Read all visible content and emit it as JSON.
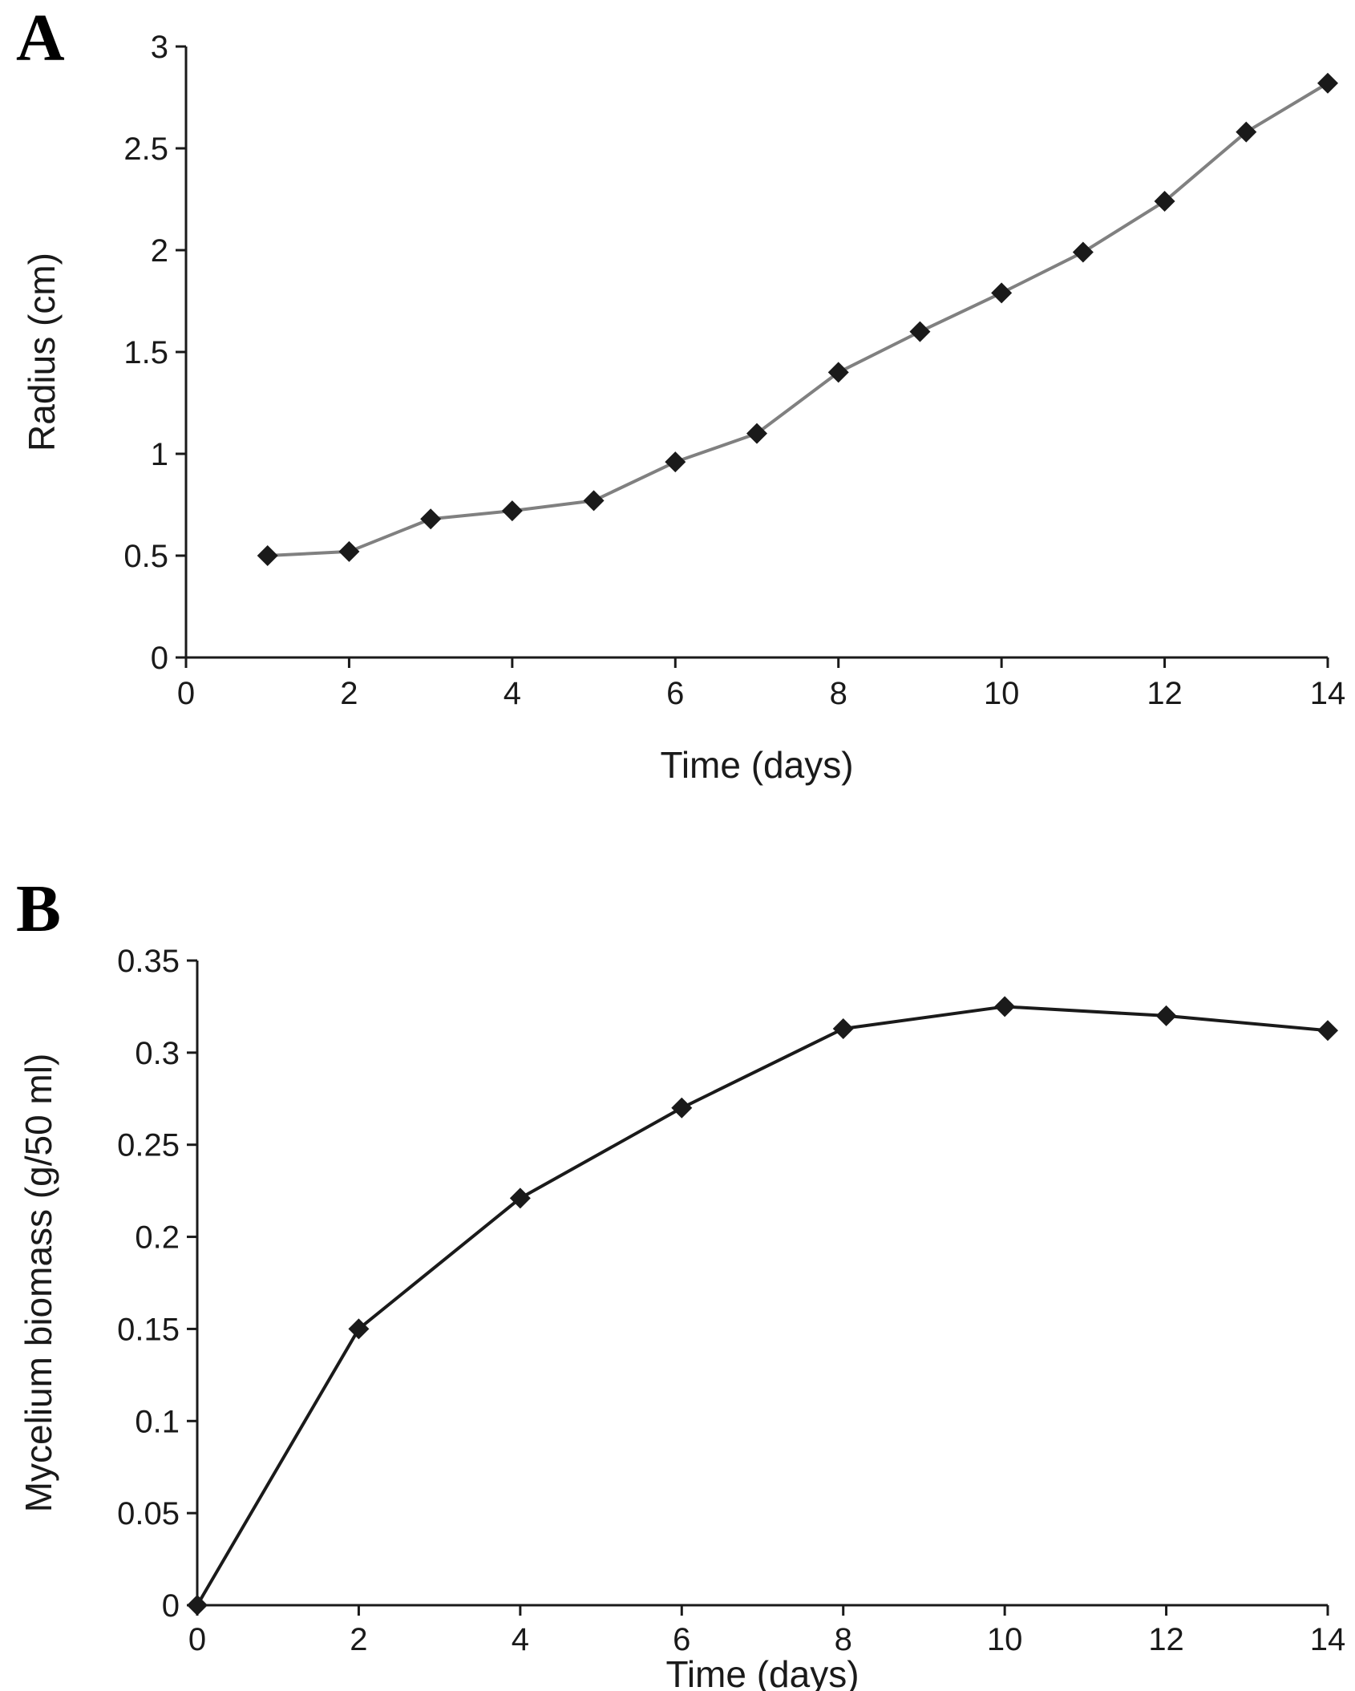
{
  "figure": {
    "background": "#ffffff",
    "panels": [
      "A",
      "B"
    ]
  },
  "chart_data": [
    {
      "panel_label": "A",
      "type": "line",
      "x": [
        1,
        2,
        3,
        4,
        5,
        6,
        7,
        8,
        9,
        10,
        11,
        12,
        13,
        14
      ],
      "series": [
        {
          "name": "Radius",
          "values": [
            0.5,
            0.52,
            0.68,
            0.72,
            0.77,
            0.96,
            1.1,
            1.4,
            1.6,
            1.79,
            1.99,
            2.24,
            2.58,
            2.82
          ]
        }
      ],
      "title": "",
      "xlabel": "Time (days)",
      "ylabel": "Radius (cm)",
      "xlim": [
        0,
        14
      ],
      "ylim": [
        0,
        3
      ],
      "xticks": [
        0,
        2,
        4,
        6,
        8,
        10,
        12,
        14
      ],
      "xtick_labels": [
        "0",
        "2",
        "4",
        "6",
        "8",
        "10",
        "12",
        "14"
      ],
      "yticks": [
        0,
        0.5,
        1,
        1.5,
        2,
        2.5,
        3
      ],
      "ytick_labels": [
        "0",
        "0.5",
        "1",
        "1.5",
        "2",
        "2.5",
        "3"
      ],
      "grid": false,
      "legend": "none",
      "line_color": "#808080",
      "marker_color": "#1a1a1a",
      "marker": "diamond"
    },
    {
      "panel_label": "B",
      "type": "line",
      "x": [
        0,
        2,
        4,
        6,
        8,
        10,
        12,
        14
      ],
      "series": [
        {
          "name": "Mycelium biomass",
          "values": [
            0,
            0.15,
            0.221,
            0.27,
            0.313,
            0.325,
            0.32,
            0.312
          ]
        }
      ],
      "title": "",
      "xlabel": "Time (days)",
      "ylabel": "Mycelium biomass (g/50 ml)",
      "xlim": [
        0,
        14
      ],
      "ylim": [
        0,
        0.35
      ],
      "xticks": [
        0,
        2,
        4,
        6,
        8,
        10,
        12,
        14
      ],
      "xtick_labels": [
        "0",
        "2",
        "4",
        "6",
        "8",
        "10",
        "12",
        "14"
      ],
      "yticks": [
        0,
        0.05,
        0.1,
        0.15,
        0.2,
        0.25,
        0.3,
        0.35
      ],
      "ytick_labels": [
        "0",
        "0.05",
        "0.1",
        "0.15",
        "0.2",
        "0.25",
        "0.3",
        "0.35"
      ],
      "grid": false,
      "legend": "none",
      "line_color": "#1a1a1a",
      "marker_color": "#1a1a1a",
      "marker": "diamond"
    }
  ]
}
